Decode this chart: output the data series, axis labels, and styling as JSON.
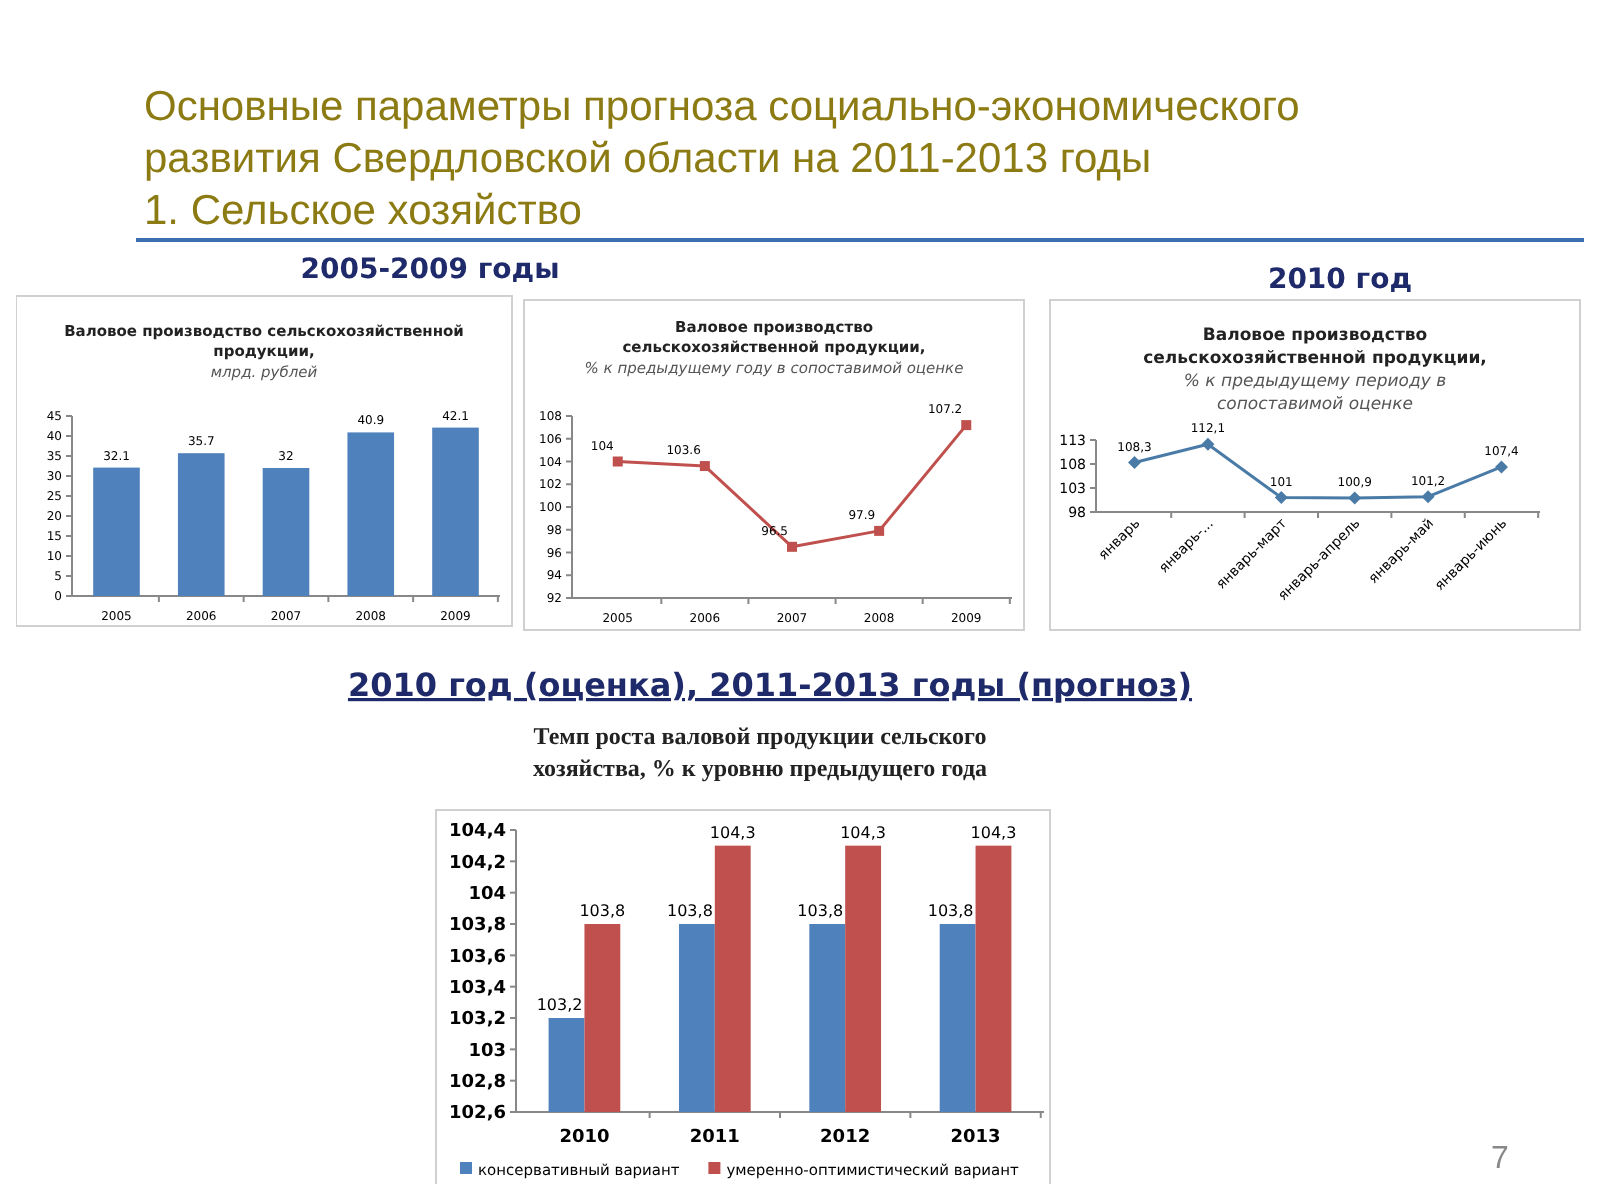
{
  "chart_data": [
    {
      "type": "bar",
      "title": "Валовое производство сельскохозяйственной продукции,",
      "subtitle": "млрд. рублей",
      "annotations": [
        "Основные параметры прогноза социально-экономического",
        "развития Свердловской области на 2011-2013 годы",
        "1. Сельское хозяйство",
        "2005-2009 годы"
      ],
      "categories": [
        "2005",
        "2006",
        "2007",
        "2008",
        "2009"
      ],
      "series": [
        {
          "color": "#4f81bd",
          "values": [
            32.1,
            35.7,
            32,
            40.9,
            42.1
          ],
          "value_labels": [
            "32.1",
            "35.7",
            "32",
            "40.9",
            "42.1"
          ]
        }
      ],
      "ylim": [
        0,
        45
      ],
      "yticks": [
        0,
        5,
        10,
        15,
        20,
        25,
        30,
        35,
        40,
        45
      ],
      "grid": false,
      "legend": false
    },
    {
      "type": "line",
      "title": "Валовое производство сельскохозяйственной продукции,",
      "subtitle": "% к предыдущему году в сопоставимой оценке",
      "categories": [
        "2005",
        "2006",
        "2007",
        "2008",
        "2009"
      ],
      "series": [
        {
          "color": "#c0504d",
          "values": [
            104,
            103.6,
            96.5,
            97.9,
            107.2
          ],
          "value_labels": [
            "104",
            "103.6",
            "96.5",
            "97.9",
            "107.2"
          ]
        }
      ],
      "ylim": [
        92,
        108
      ],
      "yticks": [
        92,
        94,
        96,
        98,
        100,
        102,
        104,
        106,
        108
      ],
      "grid": false,
      "legend": false,
      "marker": "square",
      "line_style": "solid"
    },
    {
      "type": "line",
      "title": "Валовое производство сельскохозяйственной продукции,",
      "subtitle": "% к предыдущему периоду в сопоставимой оценке",
      "annotations": [
        "2010 год"
      ],
      "categories": [
        "январь",
        "январь-...",
        "январь-март",
        "январь-апрель",
        "январь-май",
        "январь-июнь"
      ],
      "series": [
        {
          "color": "#4a7ba7",
          "values": [
            108.3,
            112.1,
            101,
            100.9,
            101.2,
            107.4
          ],
          "value_labels": [
            "108,3",
            "112,1",
            "101",
            "100,9",
            "101,2",
            "107,4"
          ]
        }
      ],
      "ylim": [
        98,
        113
      ],
      "yticks": [
        98,
        103,
        108,
        113
      ],
      "grid": false,
      "legend": false,
      "marker": "diamond",
      "line_style": "solid"
    },
    {
      "type": "bar",
      "title": "Темп роста валовой продукции сельского хозяйства, % к уровню предыдущего года",
      "annotations": [
        "2010 год (оценка), 2011-2013 годы (прогноз)",
        "7"
      ],
      "categories": [
        "2010",
        "2011",
        "2012",
        "2013"
      ],
      "series": [
        {
          "name": "консервативный вариант",
          "color": "#4f81bd",
          "values": [
            103.2,
            103.8,
            103.8,
            103.8
          ],
          "value_labels": [
            "103,2",
            "103,8",
            "103,8",
            "103,8"
          ]
        },
        {
          "name": "умеренно-оптимистический вариант",
          "color": "#c0504d",
          "values": [
            103.8,
            104.3,
            104.3,
            104.3
          ],
          "value_labels": [
            "103,8",
            "104,3",
            "104,3",
            "104,3"
          ]
        }
      ],
      "ylim": [
        102.6,
        104.4
      ],
      "yticks": [
        {
          "value": 102.6,
          "label": "102,6"
        },
        {
          "value": 102.8,
          "label": "102,8"
        },
        {
          "value": 103,
          "label": "103"
        },
        {
          "value": 103.2,
          "label": "103,2"
        },
        {
          "value": 103.4,
          "label": "103,4"
        },
        {
          "value": 103.6,
          "label": "103,6"
        },
        {
          "value": 103.8,
          "label": "103,8"
        },
        {
          "value": 104,
          "label": "104"
        },
        {
          "value": 104.2,
          "label": "104,2"
        },
        {
          "value": 104.4,
          "label": "104,4"
        }
      ],
      "grid": false,
      "legend": "bottom"
    }
  ]
}
